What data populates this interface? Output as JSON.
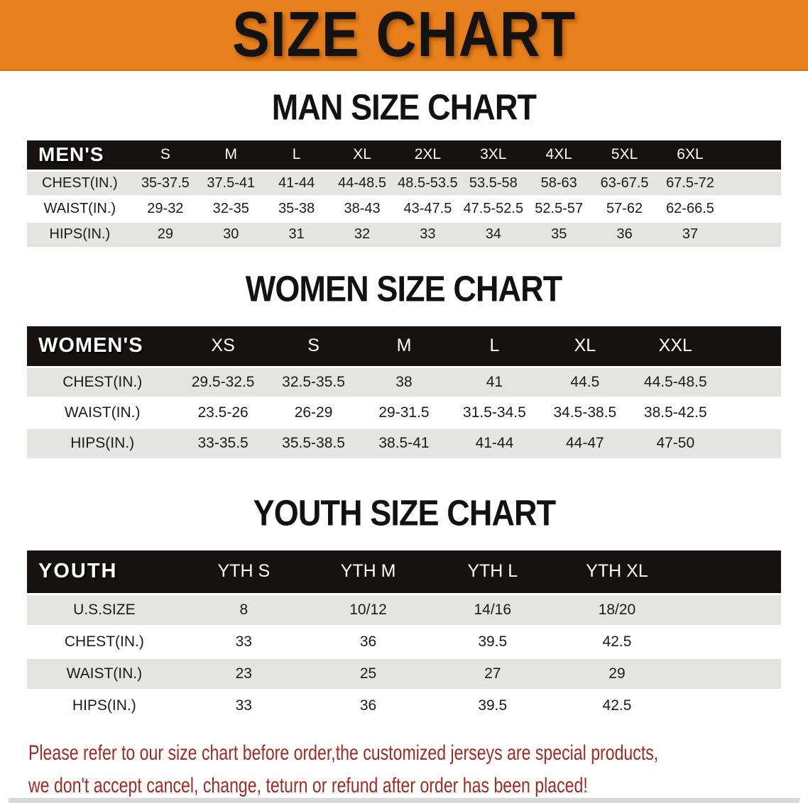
{
  "banner": {
    "title": "SIZE CHART"
  },
  "sections": {
    "men": {
      "heading": "MAN SIZE CHART",
      "table": {
        "header_label": "MEN'S",
        "columns": [
          "S",
          "M",
          "L",
          "XL",
          "2XL",
          "3XL",
          "4XL",
          "5XL",
          "6XL"
        ],
        "rows": [
          {
            "label": "CHEST(IN.)",
            "values": [
              "35-37.5",
              "37.5-41",
              "41-44",
              "44-48.5",
              "48.5-53.5",
              "53.5-58",
              "58-63",
              "63-67.5",
              "67.5-72"
            ]
          },
          {
            "label": "WAIST(IN.)",
            "values": [
              "29-32",
              "32-35",
              "35-38",
              "38-43",
              "43-47.5",
              "47.5-52.5",
              "52.5-57",
              "57-62",
              "62-66.5"
            ]
          },
          {
            "label": "HIPS(IN.)",
            "values": [
              "29",
              "30",
              "31",
              "32",
              "33",
              "34",
              "35",
              "36",
              "37"
            ]
          }
        ]
      }
    },
    "women": {
      "heading": "WOMEN SIZE CHART",
      "table": {
        "header_label": "WOMEN'S",
        "columns": [
          "XS",
          "S",
          "M",
          "L",
          "XL",
          "XXL"
        ],
        "rows": [
          {
            "label": "CHEST(IN.)",
            "values": [
              "29.5-32.5",
              "32.5-35.5",
              "38",
              "41",
              "44.5",
              "44.5-48.5"
            ]
          },
          {
            "label": "WAIST(IN.)",
            "values": [
              "23.5-26",
              "26-29",
              "29-31.5",
              "31.5-34.5",
              "34.5-38.5",
              "38.5-42.5"
            ]
          },
          {
            "label": "HIPS(IN.)",
            "values": [
              "33-35.5",
              "35.5-38.5",
              "38.5-41",
              "41-44",
              "44-47",
              "47-50"
            ]
          }
        ]
      }
    },
    "youth": {
      "heading": "YOUTH SIZE CHART",
      "table": {
        "header_label": "YOUTH",
        "columns": [
          "YTH S",
          "YTH M",
          "YTH L",
          "YTH XL"
        ],
        "rows": [
          {
            "label": "U.S.SIZE",
            "values": [
              "8",
              "10/12",
              "14/16",
              "18/20"
            ]
          },
          {
            "label": "CHEST(IN.)",
            "values": [
              "33",
              "36",
              "39.5",
              "42.5"
            ]
          },
          {
            "label": "WAIST(IN.)",
            "values": [
              "23",
              "25",
              "27",
              "29"
            ]
          },
          {
            "label": "HIPS(IN.)",
            "values": [
              "33",
              "36",
              "39.5",
              "42.5"
            ]
          }
        ]
      }
    }
  },
  "disclaimer": {
    "line1": "Please refer to our size chart before order,the customized jerseys are special products,",
    "line2": "we don't accept cancel, change, teturn or refund after order has been placed!"
  },
  "colors": {
    "banner_bg": "#E8811C",
    "header_band": "#161211",
    "row_shade": "#E4E4E2",
    "table_text": "#1B1B1B",
    "disclaimer_text": "#A02B22"
  }
}
